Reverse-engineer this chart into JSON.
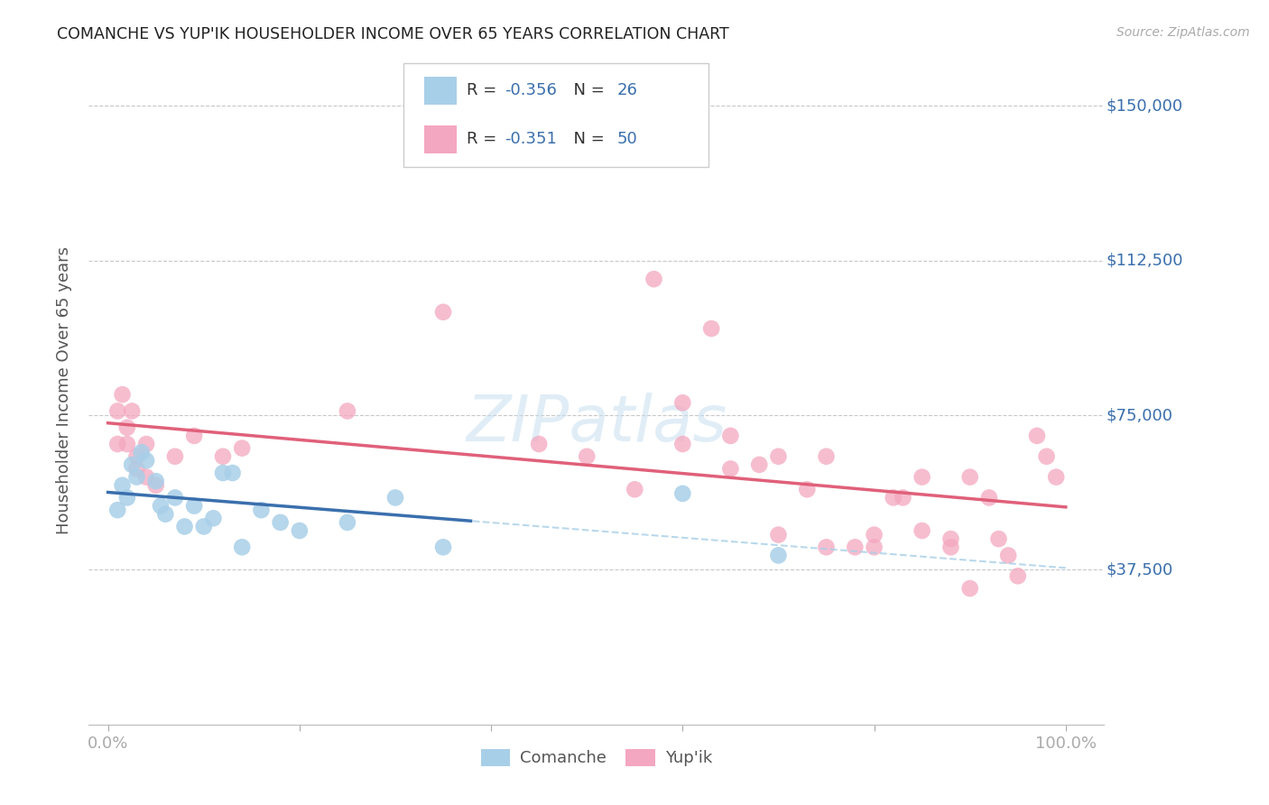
{
  "title": "COMANCHE VS YUP'IK HOUSEHOLDER INCOME OVER 65 YEARS CORRELATION CHART",
  "source": "Source: ZipAtlas.com",
  "ylabel": "Householder Income Over 65 years",
  "legend_r1": "R = -0.356   N = 26",
  "legend_r2": "R = -0.351   N = 50",
  "legend_label_comanche": "Comanche",
  "legend_label_yupik": "Yup'ik",
  "ytick_vals": [
    0,
    37500,
    75000,
    112500,
    150000
  ],
  "ytick_labels": [
    "",
    "$37,500",
    "$75,000",
    "$112,500",
    "$150,000"
  ],
  "xlim": [
    -2,
    104
  ],
  "ylim": [
    0,
    162000
  ],
  "comanche_color": "#a8cfe8",
  "yupik_color": "#f4a7c0",
  "comanche_line_color": "#3a6fad",
  "yupik_line_color": "#e0607a",
  "dashed_color": "#a8cfe8",
  "background_color": "#ffffff",
  "grid_color": "#c8c8c8",
  "text_blue": "#3a6fad",
  "text_dark": "#333333",
  "comanche_x": [
    1.0,
    1.5,
    2.0,
    2.5,
    3.0,
    3.5,
    4.0,
    5.0,
    5.5,
    6.0,
    7.0,
    8.0,
    9.0,
    10.0,
    11.0,
    12.0,
    13.0,
    14.0,
    16.0,
    18.0,
    20.0,
    25.0,
    30.0,
    35.0,
    60.0,
    70.0
  ],
  "comanche_y": [
    52000,
    58000,
    55000,
    63000,
    60000,
    66000,
    64000,
    59000,
    53000,
    51000,
    55000,
    48000,
    53000,
    48000,
    50000,
    61000,
    61000,
    43000,
    52000,
    49000,
    47000,
    49000,
    55000,
    43000,
    56000,
    41000
  ],
  "yupik_x": [
    1.0,
    1.0,
    1.5,
    2.0,
    2.0,
    2.5,
    3.0,
    3.0,
    4.0,
    4.0,
    5.0,
    7.0,
    9.0,
    12.0,
    14.0,
    25.0,
    35.0,
    45.0,
    50.0,
    55.0,
    57.0,
    60.0,
    60.0,
    63.0,
    65.0,
    65.0,
    68.0,
    70.0,
    70.0,
    73.0,
    75.0,
    75.0,
    78.0,
    80.0,
    80.0,
    82.0,
    83.0,
    85.0,
    85.0,
    88.0,
    88.0,
    90.0,
    90.0,
    92.0,
    93.0,
    94.0,
    95.0,
    97.0,
    98.0,
    99.0
  ],
  "yupik_y": [
    68000,
    76000,
    80000,
    72000,
    68000,
    76000,
    65000,
    62000,
    68000,
    60000,
    58000,
    65000,
    70000,
    65000,
    67000,
    76000,
    100000,
    68000,
    65000,
    57000,
    108000,
    78000,
    68000,
    96000,
    70000,
    62000,
    63000,
    46000,
    65000,
    57000,
    65000,
    43000,
    43000,
    46000,
    43000,
    55000,
    55000,
    60000,
    47000,
    43000,
    45000,
    60000,
    33000,
    55000,
    45000,
    41000,
    36000,
    70000,
    65000,
    60000
  ],
  "solid_cutoff_x": 38,
  "watermark": "ZIPatlas"
}
